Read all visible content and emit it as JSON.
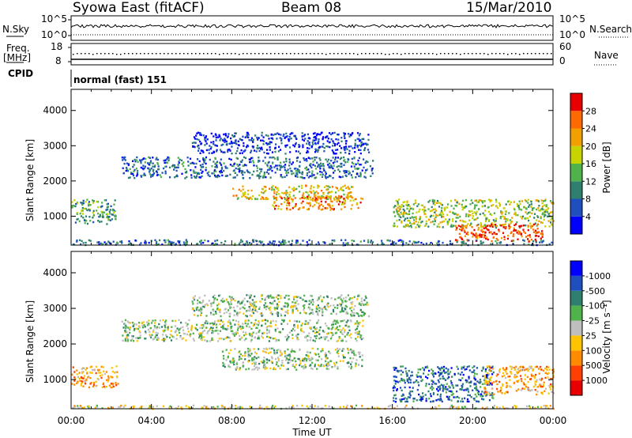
{
  "header": {
    "station": "Syowa East (fitACF)",
    "beam": "Beam 08",
    "date": "15/Mar/2010"
  },
  "top_panels": {
    "nsky_label": "N.Sky",
    "nsky_ticks": [
      "10^5",
      "10^0"
    ],
    "nsearch_label": "N.Search",
    "nsearch_ticks": [
      "10^5",
      "10^0"
    ],
    "freq_label_1": "Freq.",
    "freq_label_2": "[MHz]",
    "freq_ticks": [
      "18",
      "8"
    ],
    "nave_label": "Nave",
    "nave_ticks": [
      "60",
      "0"
    ],
    "cpid_label": "CPID",
    "cpid_value": "normal (fast) 151"
  },
  "colors": {
    "power_scale": [
      "#0000ff",
      "#1f4fbf",
      "#2e7f6e",
      "#4fb24a",
      "#c8d400",
      "#f2a000",
      "#ff6a00",
      "#e80000"
    ],
    "velocity_scale": [
      "#0000ff",
      "#1f4fbf",
      "#2e7f6e",
      "#4fb24a",
      "#bebebe",
      "#ffc400",
      "#ff8c00",
      "#ff4000",
      "#e80000"
    ]
  },
  "chart_data": [
    {
      "type": "heatmap",
      "panel": "power",
      "ylabel": "Slant Range [km]",
      "yticks": [
        "1000",
        "2000",
        "3000",
        "4000"
      ],
      "ylim": [
        180,
        4600
      ],
      "xlim_hours": [
        0,
        24
      ],
      "colorbar_label": "Power [dB]",
      "colorbar_ticks": [
        "4",
        "8",
        "12",
        "16",
        "20",
        "24",
        "28"
      ],
      "colorbar_range": [
        0,
        30
      ],
      "echo_regions": [
        {
          "t0": 0.0,
          "t1": 2.2,
          "r0": 800,
          "r1": 1500,
          "level": 3
        },
        {
          "t0": 2.5,
          "t1": 15.0,
          "r0": 2100,
          "r1": 2700,
          "level": 2
        },
        {
          "t0": 8.0,
          "t1": 14.0,
          "r0": 1500,
          "r1": 1900,
          "level": 5
        },
        {
          "t0": 10.0,
          "t1": 14.5,
          "r0": 1200,
          "r1": 1600,
          "level": 6
        },
        {
          "t0": 6.0,
          "t1": 14.8,
          "r0": 2800,
          "r1": 3400,
          "level": 1
        },
        {
          "t0": 16.0,
          "t1": 24.0,
          "r0": 700,
          "r1": 1500,
          "level": 4
        },
        {
          "t0": 19.0,
          "t1": 23.5,
          "r0": 300,
          "r1": 800,
          "level": 7
        },
        {
          "t0": 0.0,
          "t1": 24.0,
          "r0": 200,
          "r1": 350,
          "level": 2
        }
      ]
    },
    {
      "type": "heatmap",
      "panel": "velocity",
      "ylabel": "Slant Range [km]",
      "yticks": [
        "1000",
        "2000",
        "3000",
        "4000"
      ],
      "ylim": [
        180,
        4600
      ],
      "xlim_hours": [
        0,
        24
      ],
      "xlabel": "Time UT",
      "xticks": [
        "00:00",
        "04:00",
        "08:00",
        "12:00",
        "16:00",
        "20:00",
        "00:00"
      ],
      "colorbar_label": "Velocity [m s⁻¹]",
      "colorbar_ticks": [
        "1000",
        "500",
        "100",
        "25",
        "-25",
        "-100",
        "-500",
        "-1000"
      ],
      "echo_regions": [
        {
          "t0": 0.0,
          "t1": 2.3,
          "r0": 800,
          "r1": 1400,
          "level": 6
        },
        {
          "t0": 2.5,
          "t1": 14.5,
          "r0": 2100,
          "r1": 2700,
          "level": 4
        },
        {
          "t0": 7.5,
          "t1": 14.5,
          "r0": 1300,
          "r1": 1900,
          "level": 4
        },
        {
          "t0": 6.0,
          "t1": 14.8,
          "r0": 2800,
          "r1": 3400,
          "level": 4
        },
        {
          "t0": 16.0,
          "t1": 21.0,
          "r0": 400,
          "r1": 1400,
          "level": 2
        },
        {
          "t0": 20.5,
          "t1": 24.0,
          "r0": 600,
          "r1": 1400,
          "level": 6
        },
        {
          "t0": 0.0,
          "t1": 24.0,
          "r0": 200,
          "r1": 300,
          "level": 5
        }
      ]
    }
  ]
}
